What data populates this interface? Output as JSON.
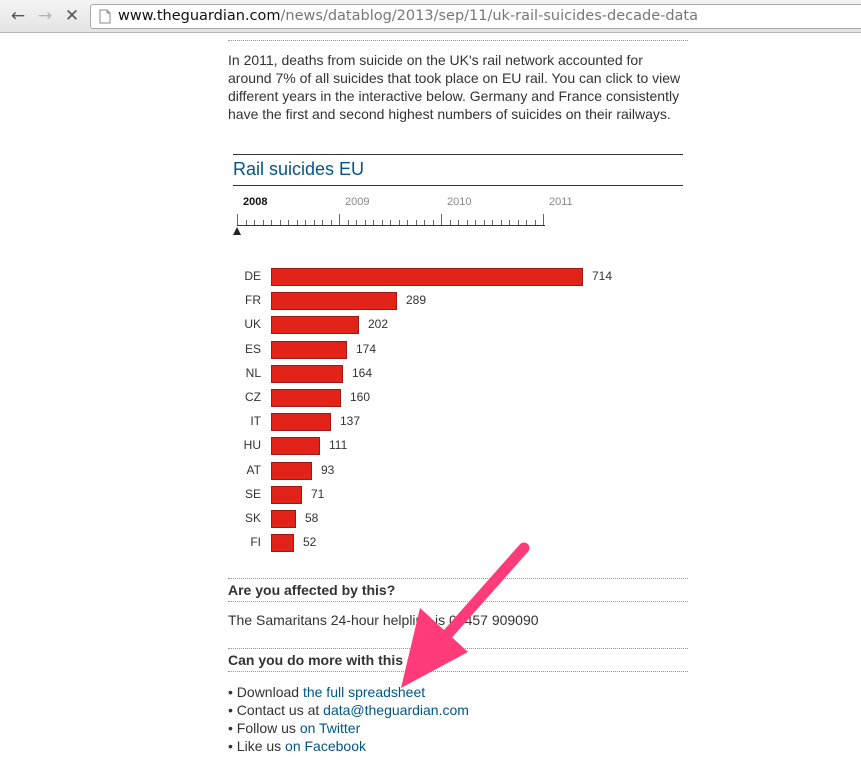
{
  "browser": {
    "url_host": "www.theguardian.com",
    "url_path": "/news/datablog/2013/sep/11/uk-rail-suicides-decade-data",
    "back_icon": "arrow-left-icon",
    "forward_icon": "arrow-right-icon",
    "stop_icon": "close-icon"
  },
  "article": {
    "intro": "In 2011, deaths from suicide on the UK's rail network accounted for around 7% of all suicides that took place on EU rail. You can click to view different years in the interactive below. Germany and France consistently have the first and second highest numbers of suicides on their railways.",
    "affected_heading": "Are you affected by this?",
    "affected_text": "The Samaritans 24-hour helpline is 08457 909090",
    "more_heading": "Can you do more with this data?",
    "links": [
      {
        "prefix": "• Download ",
        "link": "the full spreadsheet"
      },
      {
        "prefix": "• Contact us at ",
        "link": "data@theguardian.com"
      },
      {
        "prefix": "• Follow us ",
        "link": "on Twitter"
      },
      {
        "prefix": "• Like us ",
        "link": "on Facebook"
      }
    ]
  },
  "chart_data": {
    "type": "bar",
    "orientation": "horizontal",
    "title": "Rail suicides EU",
    "years": [
      "2008",
      "2009",
      "2010",
      "2011"
    ],
    "selected_year": "2008",
    "categories": [
      "DE",
      "FR",
      "UK",
      "ES",
      "NL",
      "CZ",
      "IT",
      "HU",
      "AT",
      "SE",
      "SK",
      "FI"
    ],
    "values": [
      714,
      289,
      202,
      174,
      164,
      160,
      137,
      111,
      93,
      71,
      58,
      52
    ],
    "colors": {
      "bar": "#e2231a",
      "title": "#005689"
    }
  },
  "colors": {
    "link": "#005689",
    "annotation_arrow": "#ff3b7a"
  }
}
